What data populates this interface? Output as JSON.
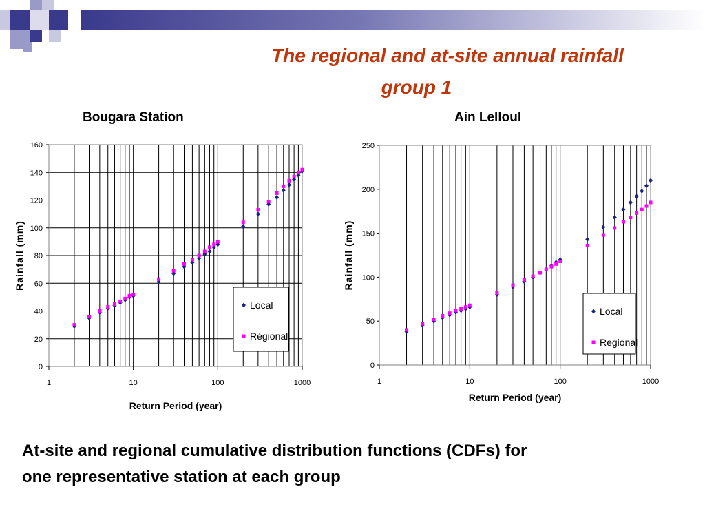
{
  "slide": {
    "title_line1": "The regional and at-site annual rainfall",
    "title_line2": "group 1",
    "caption_line1": "At-site and regional cumulative distribution functions (CDFs) for",
    "caption_line2": "one representative station at each group",
    "title_color": "#c0360a"
  },
  "chart_data": [
    {
      "type": "scatter",
      "title": "Bougara Station",
      "xlabel": "Return Period (year)",
      "ylabel": "Rainfall (mm)",
      "xscale": "log",
      "xlim": [
        1,
        1000
      ],
      "ylim": [
        0,
        160
      ],
      "yticks": [
        0,
        20,
        40,
        60,
        80,
        100,
        120,
        140,
        160
      ],
      "xticks": [
        1,
        10,
        100,
        1000
      ],
      "xtick_labels": [
        "1",
        "10",
        "100",
        "1000"
      ],
      "grid": "vertical log gridlines, horizontal gridlines",
      "legend_position": "bottom-right",
      "series": [
        {
          "name": "Local",
          "color": "#1a237e",
          "marker": "diamond",
          "x": [
            2,
            3,
            4,
            5,
            6,
            7,
            8,
            9,
            10,
            20,
            30,
            40,
            50,
            60,
            70,
            80,
            90,
            100,
            200,
            300,
            400,
            500,
            600,
            700,
            800,
            900,
            1000
          ],
          "y": [
            29,
            35,
            39,
            42,
            44,
            46,
            48,
            50,
            51,
            61,
            67,
            72,
            75,
            78,
            81,
            83,
            86,
            88,
            101,
            110,
            117,
            122,
            127,
            131,
            135,
            138,
            141
          ]
        },
        {
          "name": "Régional",
          "color": "#ff00ff",
          "marker": "square",
          "x": [
            2,
            3,
            4,
            5,
            6,
            7,
            8,
            9,
            10,
            20,
            30,
            40,
            50,
            60,
            70,
            80,
            90,
            100,
            200,
            300,
            400,
            500,
            600,
            700,
            800,
            900,
            1000
          ],
          "y": [
            30,
            36,
            40,
            43,
            45,
            47,
            49,
            51,
            52,
            63,
            69,
            74,
            77,
            80,
            83,
            86,
            88,
            90,
            104,
            113,
            119,
            125,
            130,
            134,
            137,
            140,
            142
          ]
        }
      ]
    },
    {
      "type": "scatter",
      "title": "Ain Lelloul",
      "xlabel": "Return Period (year)",
      "ylabel": "Rainfall (mm)",
      "xscale": "log",
      "xlim": [
        1,
        1000
      ],
      "ylim": [
        0,
        250
      ],
      "yticks": [
        0,
        50,
        100,
        150,
        200,
        250
      ],
      "xticks": [
        1,
        10,
        100,
        1000
      ],
      "xtick_labels": [
        "1",
        "10",
        "100",
        "1000"
      ],
      "grid": "vertical log gridlines, no horizontal gridlines",
      "legend_position": "bottom-right",
      "series": [
        {
          "name": "Local",
          "color": "#1a237e",
          "marker": "diamond",
          "x": [
            2,
            3,
            4,
            5,
            6,
            7,
            8,
            9,
            10,
            20,
            30,
            40,
            50,
            60,
            70,
            80,
            90,
            100,
            200,
            300,
            400,
            500,
            600,
            700,
            800,
            900,
            1000
          ],
          "y": [
            38,
            45,
            50,
            54,
            57,
            60,
            62,
            64,
            66,
            80,
            89,
            95,
            100,
            105,
            109,
            113,
            117,
            120,
            143,
            157,
            168,
            177,
            185,
            192,
            198,
            204,
            210
          ]
        },
        {
          "name": "Regional",
          "color": "#ff00ff",
          "marker": "square",
          "x": [
            2,
            3,
            4,
            5,
            6,
            7,
            8,
            9,
            10,
            20,
            30,
            40,
            50,
            60,
            70,
            80,
            90,
            100,
            200,
            300,
            400,
            500,
            600,
            700,
            800,
            900,
            1000
          ],
          "y": [
            40,
            47,
            52,
            56,
            59,
            62,
            64,
            66,
            68,
            82,
            91,
            97,
            101,
            105,
            109,
            112,
            115,
            118,
            136,
            148,
            156,
            163,
            168,
            173,
            177,
            181,
            185
          ]
        }
      ]
    }
  ]
}
